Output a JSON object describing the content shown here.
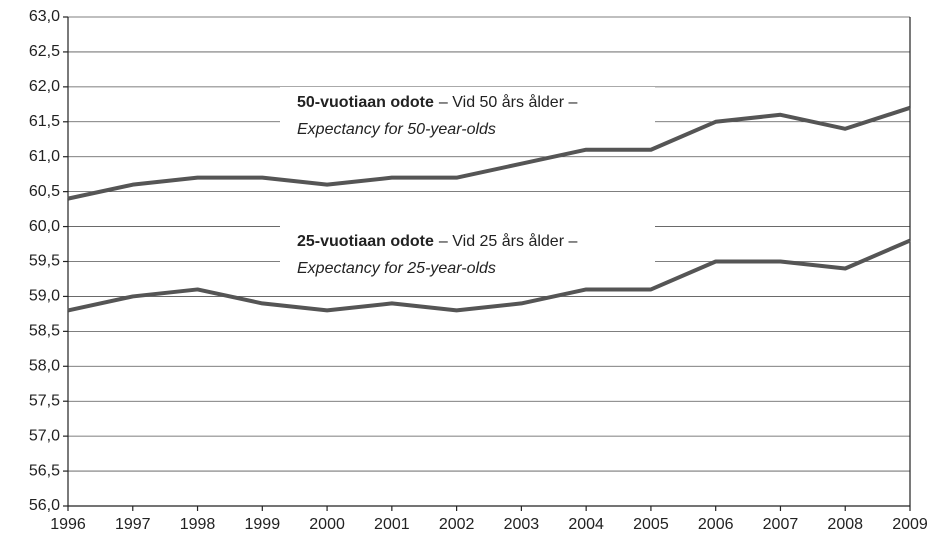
{
  "chart_data": {
    "type": "line",
    "x": [
      1996,
      1997,
      1998,
      1999,
      2000,
      2001,
      2002,
      2003,
      2004,
      2005,
      2006,
      2007,
      2008,
      2009
    ],
    "xlim": [
      1996,
      2009
    ],
    "xticks": [
      1996,
      1997,
      1998,
      1999,
      2000,
      2001,
      2002,
      2003,
      2004,
      2005,
      2006,
      2007,
      2008,
      2009
    ],
    "ylim": [
      56,
      63
    ],
    "yticks": [
      {
        "value": 56,
        "label": "56,0"
      },
      {
        "value": 56.5,
        "label": "56,5"
      },
      {
        "value": 57,
        "label": "57,0"
      },
      {
        "value": 57.5,
        "label": "57,5"
      },
      {
        "value": 58,
        "label": "58,0"
      },
      {
        "value": 58.5,
        "label": "58,5"
      },
      {
        "value": 59,
        "label": "59,0"
      },
      {
        "value": 59.5,
        "label": "59,5"
      },
      {
        "value": 60,
        "label": "60,0"
      },
      {
        "value": 60.5,
        "label": "60,5"
      },
      {
        "value": 61,
        "label": "61,0"
      },
      {
        "value": 61.5,
        "label": "61,5"
      },
      {
        "value": 62,
        "label": "62,0"
      },
      {
        "value": 62.5,
        "label": "62,5"
      },
      {
        "value": 63,
        "label": "63,0"
      }
    ],
    "grid": true,
    "series": [
      {
        "name": "50-vuotiaan odote",
        "swedish": "– Vid 50 års ålder –",
        "english": "Expectancy for 50-year-olds",
        "color": "#555555",
        "values": [
          60.4,
          60.6,
          60.7,
          60.7,
          60.6,
          60.7,
          60.7,
          60.9,
          61.1,
          61.1,
          61.5,
          61.6,
          61.4,
          61.7
        ]
      },
      {
        "name": "25-vuotiaan odote",
        "swedish": "– Vid 25 års ålder –",
        "english": "Expectancy for 25-year-olds",
        "color": "#555555",
        "values": [
          58.8,
          59.0,
          59.1,
          58.9,
          58.8,
          58.9,
          58.8,
          58.9,
          59.1,
          59.1,
          59.5,
          59.5,
          59.4,
          59.8
        ]
      }
    ]
  }
}
